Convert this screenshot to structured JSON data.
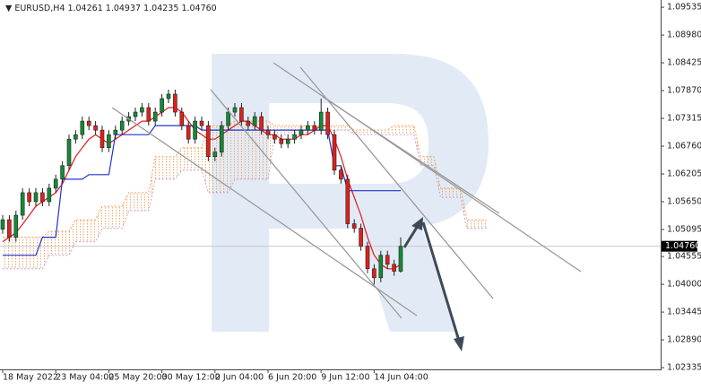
{
  "chart_data": {
    "type": "candlestick",
    "symbol": "EURUSD,H4",
    "header_values": [
      1.04261,
      1.04937,
      1.04235,
      1.0476
    ],
    "header_value_labels": [
      "1.04261",
      "1.04937",
      "1.04235",
      "1.04760"
    ],
    "categories": [
      "18 May 2022",
      null,
      null,
      null,
      null,
      null,
      null,
      null,
      "23 May 04:00",
      null,
      null,
      null,
      null,
      null,
      null,
      null,
      "25 May 20:00",
      null,
      null,
      null,
      null,
      null,
      null,
      null,
      "30 May 12:00",
      null,
      null,
      null,
      null,
      null,
      null,
      null,
      "2 Jun 04:00",
      null,
      null,
      null,
      null,
      null,
      null,
      null,
      "6 Jun 20:00",
      null,
      null,
      null,
      null,
      null,
      null,
      null,
      "9 Jun 12:00",
      null,
      null,
      null,
      null,
      null,
      null,
      null,
      "14 Jun 04:00",
      null,
      null,
      null,
      null,
      null,
      null,
      null,
      null,
      null,
      null,
      null,
      null,
      null,
      null,
      null,
      null,
      null
    ],
    "open": [
      1.051,
      1.0529,
      1.0494,
      1.0538,
      1.0583,
      1.0565,
      1.0583,
      1.0565,
      1.0592,
      1.061,
      1.0637,
      1.069,
      1.0699,
      1.0726,
      1.0717,
      1.0708,
      1.0673,
      1.0699,
      1.0708,
      1.0726,
      1.0735,
      1.0744,
      1.0753,
      1.0726,
      1.0744,
      1.0771,
      1.078,
      1.0744,
      1.0717,
      1.069,
      1.0726,
      1.0717,
      1.0655,
      1.0664,
      1.0717,
      1.0744,
      1.0753,
      1.0726,
      1.0717,
      1.0735,
      1.0708,
      1.0699,
      1.069,
      1.0681,
      1.069,
      1.0699,
      1.0708,
      1.0717,
      1.0708,
      1.0744,
      1.0699,
      1.0628,
      1.061,
      1.0521,
      1.0512,
      1.0476,
      1.0431,
      1.0413,
      1.0458,
      1.044,
      1.04261,
      null,
      null,
      null,
      null,
      null,
      null,
      null,
      null,
      null,
      null,
      null,
      null,
      null
    ],
    "high": [
      1.0538,
      1.0538,
      1.0547,
      1.0592,
      1.0592,
      1.0592,
      1.0592,
      1.0601,
      1.0619,
      1.0646,
      1.0699,
      1.0708,
      1.0735,
      1.0735,
      1.0726,
      1.0717,
      1.0708,
      1.0717,
      1.0735,
      1.0744,
      1.0753,
      1.0762,
      1.0762,
      1.0753,
      1.078,
      1.0789,
      1.0789,
      1.0753,
      1.0726,
      1.0735,
      1.0735,
      1.0726,
      1.0673,
      1.0726,
      1.0753,
      1.0762,
      1.0762,
      1.0735,
      1.0744,
      1.0744,
      1.0717,
      1.0708,
      1.0699,
      1.0699,
      1.0708,
      1.0717,
      1.0726,
      1.0726,
      1.0771,
      1.0753,
      1.0708,
      1.0637,
      1.0619,
      1.053,
      1.0521,
      1.0485,
      1.044,
      1.0467,
      1.0467,
      1.0449,
      1.04937,
      null,
      null,
      null,
      null,
      null,
      null,
      null,
      null,
      null,
      null,
      null,
      null,
      null
    ],
    "low": [
      1.0501,
      1.0485,
      1.0485,
      1.0529,
      1.0556,
      1.0556,
      1.0556,
      1.0556,
      1.0583,
      1.0601,
      1.0628,
      1.0681,
      1.069,
      1.0708,
      1.0699,
      1.0664,
      1.0664,
      1.069,
      1.0699,
      1.0717,
      1.0726,
      1.0735,
      1.0717,
      1.0717,
      1.0735,
      1.0762,
      1.0735,
      1.0708,
      1.0681,
      1.0681,
      1.0708,
      1.0646,
      1.0646,
      1.0655,
      1.0708,
      1.0735,
      1.0717,
      1.0708,
      1.0708,
      1.0699,
      1.069,
      1.0681,
      1.0672,
      1.0672,
      1.0681,
      1.069,
      1.0699,
      1.0699,
      1.0699,
      1.069,
      1.0619,
      1.0601,
      1.0512,
      1.0503,
      1.0467,
      1.0422,
      1.0399,
      1.0404,
      1.0431,
      1.0417,
      1.04235,
      null,
      null,
      null,
      null,
      null,
      null,
      null,
      null,
      null,
      null,
      null,
      null,
      null
    ],
    "close": [
      1.0529,
      1.0494,
      1.0538,
      1.0583,
      1.0565,
      1.0583,
      1.0565,
      1.0592,
      1.061,
      1.0637,
      1.069,
      1.0699,
      1.0726,
      1.0717,
      1.0708,
      1.0673,
      1.0699,
      1.0708,
      1.0726,
      1.0735,
      1.0744,
      1.0753,
      1.0726,
      1.0744,
      1.0771,
      1.078,
      1.0744,
      1.0717,
      1.069,
      1.0726,
      1.0717,
      1.0655,
      1.0664,
      1.0717,
      1.0744,
      1.0753,
      1.0726,
      1.0717,
      1.0735,
      1.0708,
      1.0699,
      1.069,
      1.0681,
      1.069,
      1.0699,
      1.0708,
      1.0717,
      1.0708,
      1.0744,
      1.0699,
      1.0628,
      1.061,
      1.0521,
      1.0512,
      1.0476,
      1.0431,
      1.0413,
      1.0458,
      1.044,
      1.04261,
      1.0476,
      null,
      null,
      null,
      null,
      null,
      null,
      null,
      null,
      null,
      null,
      null,
      null,
      null
    ],
    "up_color": "#138a36",
    "down_color": "#e0201b",
    "lines": [
      {
        "color": "#e31a1c",
        "values": [
          1.0485,
          1.0494,
          1.0503,
          1.052,
          1.0538,
          1.0556,
          1.0565,
          1.0574,
          1.0583,
          1.0601,
          1.0628,
          1.0655,
          1.0673,
          1.069,
          1.0699,
          1.069,
          1.0681,
          1.069,
          1.0699,
          1.0708,
          1.0717,
          1.0726,
          1.0726,
          1.0735,
          1.0744,
          1.0753,
          1.0753,
          1.0744,
          1.0726,
          1.0708,
          1.0699,
          1.069,
          1.069,
          1.0699,
          1.0708,
          1.0717,
          1.0726,
          1.0726,
          1.0717,
          1.0708,
          1.0699,
          1.0699,
          1.069,
          1.069,
          1.069,
          1.0699,
          1.0699,
          1.0708,
          1.0717,
          1.0717,
          1.069,
          1.0655,
          1.061,
          1.0574,
          1.0538,
          1.0494,
          1.0458,
          1.044,
          1.0431,
          1.0431,
          1.044,
          null,
          null,
          null,
          null,
          null,
          null,
          null,
          null,
          null,
          null,
          null,
          null,
          null
        ]
      },
      {
        "color": "#2233cc",
        "values": [
          1.0458,
          1.0458,
          1.0458,
          1.0458,
          1.0458,
          1.0458,
          1.0494,
          1.0494,
          1.0494,
          1.061,
          1.061,
          1.061,
          1.061,
          1.0619,
          1.0619,
          1.0619,
          1.0619,
          1.0699,
          1.0699,
          1.0699,
          1.0699,
          1.0699,
          1.0699,
          1.0717,
          1.0717,
          1.0717,
          1.0717,
          1.0717,
          1.0717,
          1.0717,
          1.0708,
          1.0708,
          1.0708,
          1.0708,
          1.0708,
          1.0708,
          1.0708,
          1.0708,
          1.0708,
          1.0708,
          1.0708,
          1.0708,
          1.0708,
          1.0708,
          1.0708,
          1.0708,
          1.0708,
          1.0708,
          1.0708,
          1.0708,
          1.0637,
          1.0637,
          1.0587,
          1.0587,
          1.0587,
          1.0587,
          1.0587,
          1.0587,
          1.0587,
          1.0587,
          1.0587,
          null,
          null,
          null,
          null,
          null,
          null,
          null,
          null,
          null,
          null,
          null,
          null,
          null
        ]
      }
    ],
    "cloud": [
      {
        "color": "#f0a060",
        "values": [
          1.0494,
          1.0494,
          1.0494,
          1.0494,
          1.0494,
          1.0494,
          1.0494,
          1.0506,
          1.0506,
          1.0506,
          1.0506,
          1.0529,
          1.0529,
          1.0529,
          1.0529,
          1.0556,
          1.0556,
          1.0556,
          1.0556,
          1.0583,
          1.0583,
          1.0583,
          1.0583,
          1.0655,
          1.0655,
          1.0655,
          1.0655,
          1.0673,
          1.0673,
          1.0673,
          1.0673,
          1.0717,
          1.0717,
          1.0717,
          1.0717,
          1.0726,
          1.0726,
          1.0726,
          1.0726,
          1.0726,
          1.0726,
          1.0717,
          1.0717,
          1.0717,
          1.0717,
          1.0717,
          1.0717,
          1.0717,
          1.0717,
          1.0717,
          1.0717,
          1.0717,
          1.0717,
          1.0708,
          1.0708,
          1.0708,
          1.0708,
          1.0708,
          1.0708,
          1.0717,
          1.0717,
          1.0717,
          1.0717,
          1.0655,
          1.0655,
          1.0655,
          1.0592,
          1.0592,
          1.0592,
          1.0592,
          1.0529,
          1.0529,
          1.0529,
          1.0529
        ]
      },
      {
        "color": "#c9a0d8",
        "values": [
          1.0431,
          1.0431,
          1.0431,
          1.0431,
          1.0431,
          1.0431,
          1.0431,
          1.0458,
          1.0458,
          1.0458,
          1.0458,
          1.0485,
          1.0485,
          1.0485,
          1.0485,
          1.0512,
          1.0512,
          1.0512,
          1.0512,
          1.0547,
          1.0547,
          1.0547,
          1.0547,
          1.061,
          1.061,
          1.061,
          1.061,
          1.0628,
          1.0628,
          1.0628,
          1.0628,
          1.0583,
          1.0583,
          1.0583,
          1.0583,
          1.061,
          1.061,
          1.061,
          1.061,
          1.061,
          1.061,
          1.0699,
          1.0699,
          1.0699,
          1.0699,
          1.0699,
          1.0699,
          1.0708,
          1.0708,
          1.0708,
          1.0708,
          1.0708,
          1.0708,
          1.0699,
          1.0699,
          1.0699,
          1.0699,
          1.0699,
          1.0699,
          1.0699,
          1.0699,
          1.0699,
          1.0699,
          1.0637,
          1.0637,
          1.0637,
          1.0574,
          1.0574,
          1.0574,
          1.0574,
          1.0512,
          1.0512,
          1.0512,
          1.0512
        ]
      }
    ],
    "ylim": [
      1.023,
      1.0968
    ],
    "yticks": [
      1.09535,
      {
        "value": 1.0898,
        "label": "1.08980"
      },
      1.08425,
      {
        "value": 1.0787,
        "label": "1.07870"
      },
      1.07315,
      {
        "value": 1.0676,
        "label": "1.06760"
      },
      1.06205,
      {
        "value": 1.0565,
        "label": "1.05650"
      },
      1.05095,
      1.04555,
      {
        "value": 1.04,
        "label": "1.04000"
      },
      1.03445,
      {
        "value": 1.0289,
        "label": "1.02890"
      },
      1.02335
    ]
  }
}
